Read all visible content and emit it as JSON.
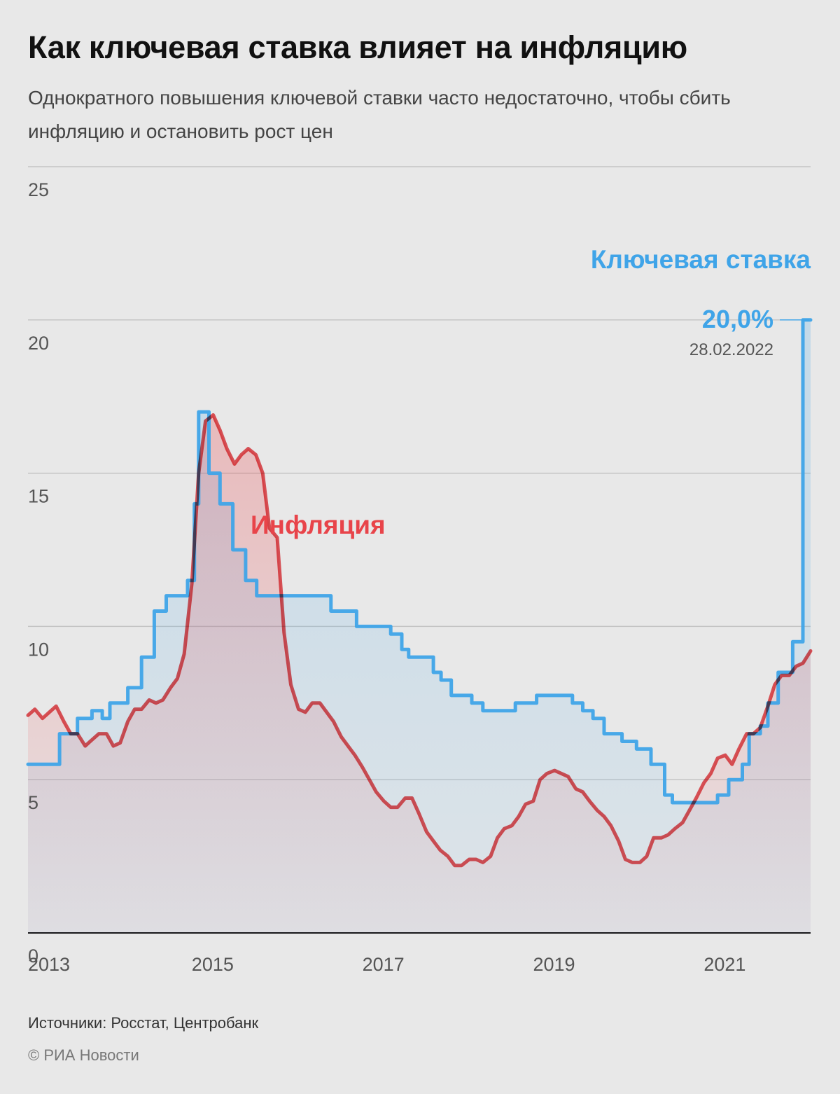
{
  "header": {
    "title": "Как ключевая ставка влияет на инфляцию",
    "subtitle": "Однократного повышения ключевой ставки часто недостаточно, чтобы сбить инфляцию и остановить рост цен"
  },
  "footer": {
    "source": "Источники: Росстат, Центробанк",
    "copyright": "© РИА Новости"
  },
  "colors": {
    "key_rate": "#3fa4e8",
    "inflation": "#e8444a",
    "grid": "#c4c4c4",
    "axis": "#111111",
    "background": "#e8e8e8"
  },
  "chart_data": {
    "type": "line",
    "grid": true,
    "ylim": [
      0,
      25
    ],
    "xlim": [
      2013.0,
      2022.17
    ],
    "y_ticks": [
      "0",
      "5",
      "10",
      "15",
      "20",
      "25"
    ],
    "x_ticks": [
      "2013",
      "2015",
      "2017",
      "2019",
      "2021"
    ],
    "annotation": {
      "value": "20,0%",
      "date": "28.02.2022"
    },
    "series": [
      {
        "name": "Ключевая ставка",
        "step": true,
        "points": [
          [
            2013.0,
            5.5
          ],
          [
            2013.37,
            6.5
          ],
          [
            2013.58,
            7.0
          ],
          [
            2013.75,
            7.25
          ],
          [
            2013.87,
            7.0
          ],
          [
            2013.96,
            7.5
          ],
          [
            2014.17,
            8.0
          ],
          [
            2014.33,
            9.0
          ],
          [
            2014.48,
            10.5
          ],
          [
            2014.62,
            11.0
          ],
          [
            2014.79,
            11.0
          ],
          [
            2014.87,
            11.5
          ],
          [
            2014.95,
            14.0
          ],
          [
            2015.0,
            17.0
          ],
          [
            2015.12,
            15.0
          ],
          [
            2015.25,
            14.0
          ],
          [
            2015.4,
            12.5
          ],
          [
            2015.55,
            11.5
          ],
          [
            2015.68,
            11.0
          ],
          [
            2016.55,
            10.5
          ],
          [
            2016.85,
            10.0
          ],
          [
            2017.25,
            9.75
          ],
          [
            2017.38,
            9.25
          ],
          [
            2017.46,
            9.0
          ],
          [
            2017.75,
            8.5
          ],
          [
            2017.84,
            8.25
          ],
          [
            2017.96,
            7.75
          ],
          [
            2018.2,
            7.5
          ],
          [
            2018.33,
            7.25
          ],
          [
            2018.71,
            7.5
          ],
          [
            2018.96,
            7.75
          ],
          [
            2019.38,
            7.5
          ],
          [
            2019.5,
            7.25
          ],
          [
            2019.62,
            7.0
          ],
          [
            2019.75,
            6.5
          ],
          [
            2019.96,
            6.25
          ],
          [
            2020.13,
            6.0
          ],
          [
            2020.3,
            5.5
          ],
          [
            2020.46,
            4.5
          ],
          [
            2020.55,
            4.25
          ],
          [
            2021.08,
            4.5
          ],
          [
            2021.21,
            5.0
          ],
          [
            2021.37,
            5.5
          ],
          [
            2021.45,
            6.5
          ],
          [
            2021.58,
            6.75
          ],
          [
            2021.67,
            7.5
          ],
          [
            2021.79,
            8.5
          ],
          [
            2021.87,
            8.5
          ],
          [
            2021.96,
            9.5
          ],
          [
            2022.08,
            20.0
          ],
          [
            2022.17,
            20.0
          ]
        ]
      },
      {
        "name": "Инфляция",
        "step": false,
        "points": [
          [
            2013.0,
            7.1
          ],
          [
            2013.08,
            7.3
          ],
          [
            2013.17,
            7.0
          ],
          [
            2013.25,
            7.2
          ],
          [
            2013.33,
            7.4
          ],
          [
            2013.42,
            6.9
          ],
          [
            2013.5,
            6.5
          ],
          [
            2013.58,
            6.5
          ],
          [
            2013.67,
            6.1
          ],
          [
            2013.75,
            6.3
          ],
          [
            2013.83,
            6.5
          ],
          [
            2013.92,
            6.5
          ],
          [
            2014.0,
            6.1
          ],
          [
            2014.08,
            6.2
          ],
          [
            2014.17,
            6.9
          ],
          [
            2014.25,
            7.3
          ],
          [
            2014.33,
            7.3
          ],
          [
            2014.42,
            7.6
          ],
          [
            2014.5,
            7.5
          ],
          [
            2014.58,
            7.6
          ],
          [
            2014.67,
            8.0
          ],
          [
            2014.75,
            8.3
          ],
          [
            2014.83,
            9.1
          ],
          [
            2014.92,
            11.4
          ],
          [
            2015.0,
            15.0
          ],
          [
            2015.08,
            16.7
          ],
          [
            2015.17,
            16.9
          ],
          [
            2015.25,
            16.4
          ],
          [
            2015.33,
            15.8
          ],
          [
            2015.42,
            15.3
          ],
          [
            2015.5,
            15.6
          ],
          [
            2015.58,
            15.8
          ],
          [
            2015.67,
            15.6
          ],
          [
            2015.75,
            15.0
          ],
          [
            2015.83,
            13.2
          ],
          [
            2015.92,
            12.9
          ],
          [
            2016.0,
            9.8
          ],
          [
            2016.08,
            8.1
          ],
          [
            2016.17,
            7.3
          ],
          [
            2016.25,
            7.2
          ],
          [
            2016.33,
            7.5
          ],
          [
            2016.42,
            7.5
          ],
          [
            2016.5,
            7.2
          ],
          [
            2016.58,
            6.9
          ],
          [
            2016.67,
            6.4
          ],
          [
            2016.75,
            6.1
          ],
          [
            2016.83,
            5.8
          ],
          [
            2016.92,
            5.4
          ],
          [
            2017.0,
            5.0
          ],
          [
            2017.08,
            4.6
          ],
          [
            2017.17,
            4.3
          ],
          [
            2017.25,
            4.1
          ],
          [
            2017.33,
            4.1
          ],
          [
            2017.42,
            4.4
          ],
          [
            2017.5,
            4.4
          ],
          [
            2017.58,
            3.9
          ],
          [
            2017.67,
            3.3
          ],
          [
            2017.75,
            3.0
          ],
          [
            2017.83,
            2.7
          ],
          [
            2017.92,
            2.5
          ],
          [
            2018.0,
            2.2
          ],
          [
            2018.08,
            2.2
          ],
          [
            2018.17,
            2.4
          ],
          [
            2018.25,
            2.4
          ],
          [
            2018.33,
            2.3
          ],
          [
            2018.42,
            2.5
          ],
          [
            2018.5,
            3.1
          ],
          [
            2018.58,
            3.4
          ],
          [
            2018.67,
            3.5
          ],
          [
            2018.75,
            3.8
          ],
          [
            2018.83,
            4.2
          ],
          [
            2018.92,
            4.3
          ],
          [
            2019.0,
            5.0
          ],
          [
            2019.08,
            5.2
          ],
          [
            2019.17,
            5.3
          ],
          [
            2019.25,
            5.2
          ],
          [
            2019.33,
            5.1
          ],
          [
            2019.42,
            4.7
          ],
          [
            2019.5,
            4.6
          ],
          [
            2019.58,
            4.3
          ],
          [
            2019.67,
            4.0
          ],
          [
            2019.75,
            3.8
          ],
          [
            2019.83,
            3.5
          ],
          [
            2019.92,
            3.0
          ],
          [
            2020.0,
            2.4
          ],
          [
            2020.08,
            2.3
          ],
          [
            2020.17,
            2.3
          ],
          [
            2020.25,
            2.5
          ],
          [
            2020.33,
            3.1
          ],
          [
            2020.42,
            3.1
          ],
          [
            2020.5,
            3.2
          ],
          [
            2020.58,
            3.4
          ],
          [
            2020.67,
            3.6
          ],
          [
            2020.75,
            4.0
          ],
          [
            2020.83,
            4.4
          ],
          [
            2020.92,
            4.9
          ],
          [
            2021.0,
            5.2
          ],
          [
            2021.08,
            5.7
          ],
          [
            2021.17,
            5.8
          ],
          [
            2021.25,
            5.5
          ],
          [
            2021.33,
            6.0
          ],
          [
            2021.42,
            6.5
          ],
          [
            2021.5,
            6.5
          ],
          [
            2021.58,
            6.7
          ],
          [
            2021.67,
            7.4
          ],
          [
            2021.75,
            8.1
          ],
          [
            2021.83,
            8.4
          ],
          [
            2021.92,
            8.4
          ],
          [
            2022.0,
            8.7
          ],
          [
            2022.08,
            8.8
          ],
          [
            2022.17,
            9.2
          ]
        ]
      }
    ]
  }
}
